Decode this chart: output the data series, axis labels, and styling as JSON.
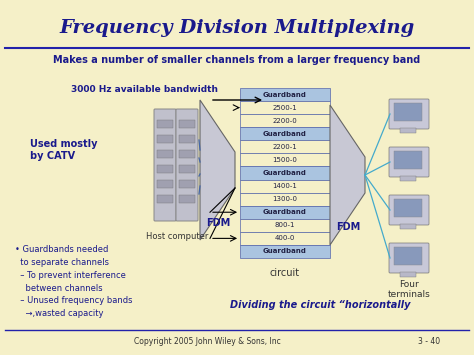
{
  "bg_color": "#f5f0c8",
  "title": "Frequency Division Multiplexing",
  "title_color": "#1a1a8c",
  "subtitle": "Makes a number of smaller channels from a larger frequency band",
  "subtitle_color": "#1a1a8c",
  "bw_label": "3000 Hz available bandwidth",
  "used_label": "Used mostly\nby CATV",
  "host_label": "Host computer",
  "circuit_label": "circuit",
  "four_label": "Four\nterminals",
  "fdm_label": "FDM",
  "fdm2_label": "FDM",
  "dividing_label": "Dividing the circuit “horizontally",
  "bullet_text": "• Guardbands needed\n  to separate channels\n  – To prevent interference\n    between channels\n  – Unused frequency bands\n    →,wasted capacity",
  "copyright": "Copyright 2005 John Wiley & Sons, Inc",
  "page": "3 - 40",
  "guardband_color": "#aac4e0",
  "channels": [
    {
      "label": "Guardband",
      "is_guard": true
    },
    {
      "label": "2500-1",
      "is_guard": false
    },
    {
      "label": "2200-0",
      "is_guard": false
    },
    {
      "label": "Guardband",
      "is_guard": true
    },
    {
      "label": "2200-1",
      "is_guard": false
    },
    {
      "label": "1500-0",
      "is_guard": false
    },
    {
      "label": "Guardband",
      "is_guard": true
    },
    {
      "label": "1400-1",
      "is_guard": false
    },
    {
      "label": "1300-0",
      "is_guard": false
    },
    {
      "label": "Guardband",
      "is_guard": true
    },
    {
      "label": "800-1",
      "is_guard": false
    },
    {
      "label": "400-0",
      "is_guard": false
    },
    {
      "label": "Guardband",
      "is_guard": true
    }
  ]
}
